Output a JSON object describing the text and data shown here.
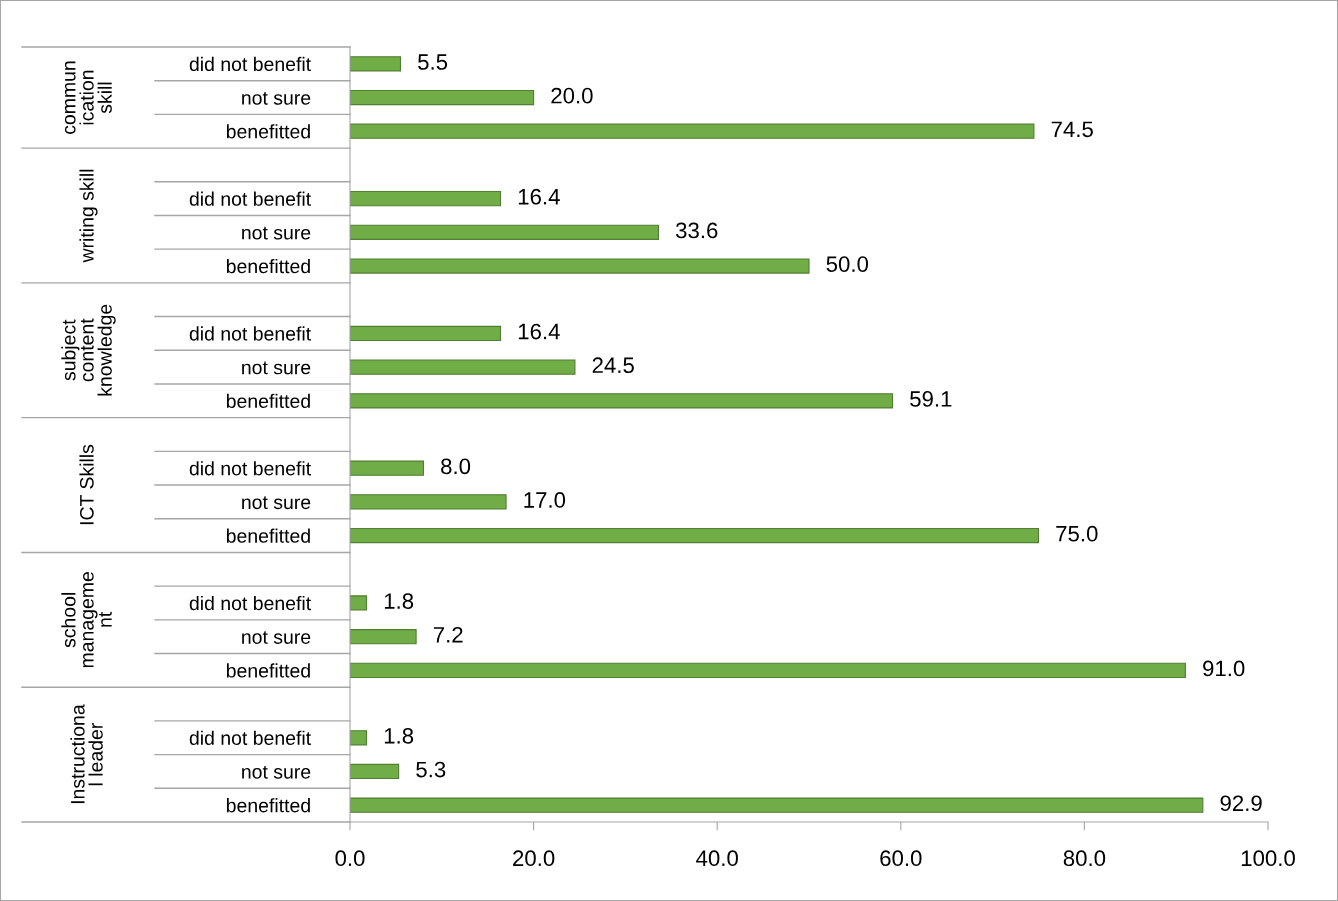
{
  "chart_data": {
    "type": "bar",
    "orientation": "horizontal",
    "categories": [
      "did not benefit",
      "not sure",
      "benefitted",
      null,
      "did not benefit",
      "not sure",
      "benefitted",
      null,
      "did not benefit",
      "not sure",
      "benefitted",
      null,
      "did not benefit",
      "not sure",
      "benefitted",
      null,
      "did not benefit",
      "not sure",
      "benefitted",
      null,
      "did not benefit",
      "not sure",
      "benefitted"
    ],
    "values": [
      5.5,
      20.0,
      74.5,
      null,
      16.4,
      33.6,
      50.0,
      null,
      16.4,
      24.5,
      59.1,
      null,
      8.0,
      17.0,
      75.0,
      null,
      1.8,
      7.2,
      91.0,
      null,
      1.8,
      5.3,
      92.9
    ],
    "value_labels": [
      "5.5",
      "20.0",
      "74.5",
      null,
      "16.4",
      "33.6",
      "50.0",
      null,
      "16.4",
      "24.5",
      "59.1",
      null,
      "8.0",
      "17.0",
      "75.0",
      null,
      "1.8",
      "7.2",
      "91.0",
      null,
      "1.8",
      "5.3",
      "92.9"
    ],
    "color": "#70ad47",
    "annotations": [
      "commun\nication\nskill",
      "writing skill",
      "subject\ncontent\nknowledge",
      "ICT Skills",
      "school\nmanageme\nnt",
      "Instructiona\nl leader"
    ],
    "xlim": [
      0,
      100
    ],
    "xticks": [
      {
        "value": 0,
        "label": "0.0"
      },
      {
        "value": 20,
        "label": "20.0"
      },
      {
        "value": 40,
        "label": "40.0"
      },
      {
        "value": 60,
        "label": "60.0"
      },
      {
        "value": 80,
        "label": "80.0"
      },
      {
        "value": 100,
        "label": "100.0"
      }
    ],
    "grid": false,
    "legend": false
  }
}
